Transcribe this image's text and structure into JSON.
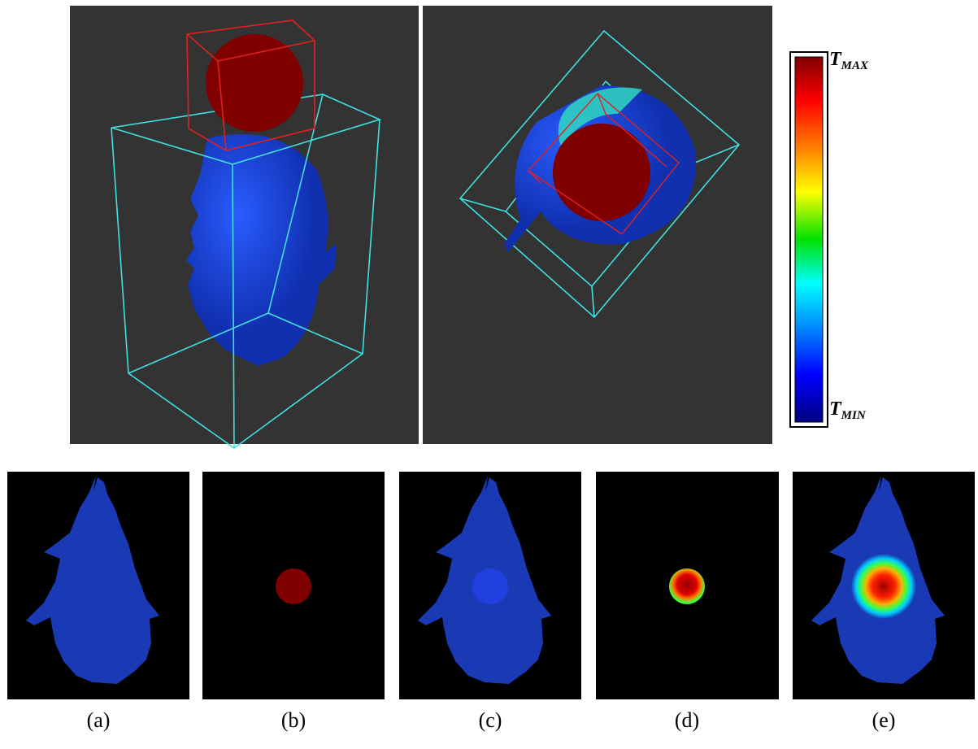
{
  "colorbar": {
    "max": {
      "symbol": "T",
      "subscript": "MAX"
    },
    "min": {
      "symbol": "T",
      "subscript": "MIN"
    }
  },
  "panels": [
    {
      "label": "(a)"
    },
    {
      "label": "(b)"
    },
    {
      "label": "(c)"
    },
    {
      "label": "(d)"
    },
    {
      "label": "(e)"
    }
  ]
}
